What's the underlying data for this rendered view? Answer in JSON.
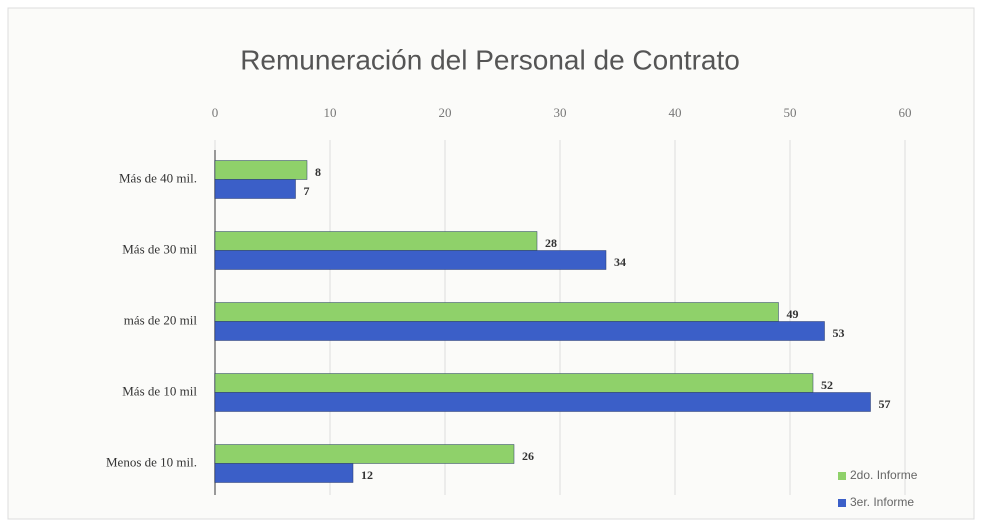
{
  "chart_data": {
    "type": "bar",
    "orientation": "horizontal",
    "title": "Remuneración del Personal de Contrato",
    "categories": [
      "Más de 40 mil.",
      "Más de 30 mil",
      "más de 20 mil",
      "Más de 10 mil",
      "Menos de 10 mil."
    ],
    "series": [
      {
        "name": "2do. Informe",
        "color": "#8fd16a",
        "values": [
          8,
          28,
          49,
          52,
          26
        ]
      },
      {
        "name": "3er. Informe",
        "color": "#3b5fc8",
        "values": [
          7,
          34,
          53,
          57,
          12
        ]
      }
    ],
    "xlim": [
      0,
      60
    ],
    "xticks": [
      0,
      10,
      20,
      30,
      40,
      50,
      60
    ],
    "grid": true,
    "legend": "bottom-right"
  }
}
